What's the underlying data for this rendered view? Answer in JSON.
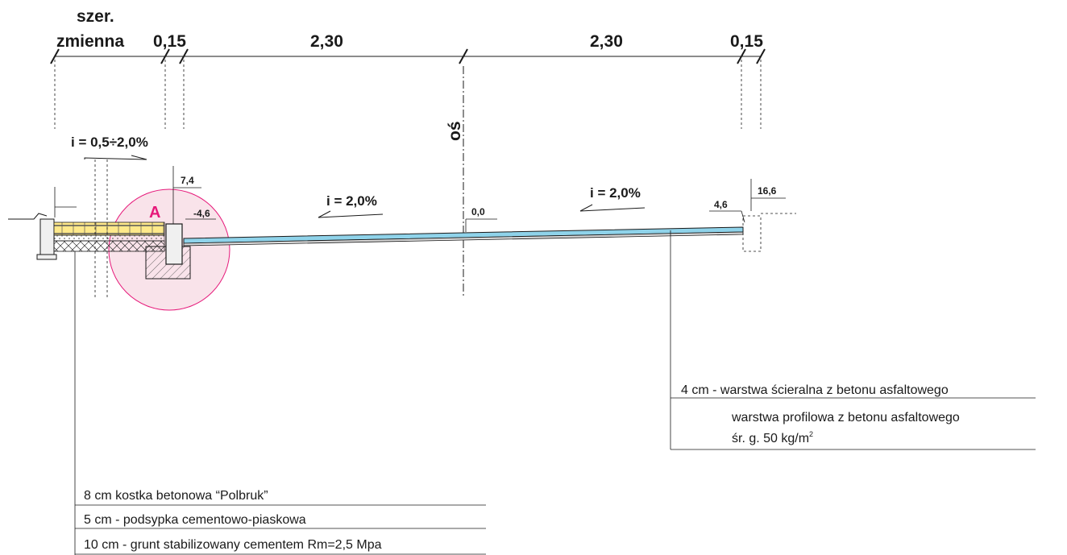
{
  "dimensions": {
    "variable_width_line1": "szer.",
    "variable_width_line2": "zmienna",
    "curb_left": "0,15",
    "lane_left": "2,30",
    "lane_right": "2,30",
    "curb_right": "0,15"
  },
  "axis_label": "oś",
  "slopes": {
    "sidewalk": "i = 0,5÷2,0%",
    "left_lane": "i = 2,0%",
    "right_lane": "i = 2,0%"
  },
  "levels": {
    "curb_top_left": "7,4",
    "curb_edge_left": "-4,6",
    "axis": "0,0",
    "edge_right": "4,6",
    "top_right": "16,6"
  },
  "detail_marker": "A",
  "colors": {
    "asphalt": "#8fd3ea",
    "paving": "#ffe98a",
    "detail_circle": "#e6197a",
    "detail_fill": "#f9e3ea"
  },
  "layers": {
    "road": {
      "wearing": "4 cm - warstwa ścieralna z betonu asfaltowego",
      "profiling": "warstwa profilowa z betonu asfaltowego",
      "profiling_rate": "śr. g. 50 kg/m",
      "profiling_rate_sup": "2"
    },
    "sidewalk": {
      "paving": "8 cm  kostka betonowa “Polbruk”",
      "bedding": "5 cm - podsypka cementowo-piaskowa",
      "base": "10 cm - grunt stabilizowany cementem Rm=2,5 Mpa"
    }
  }
}
